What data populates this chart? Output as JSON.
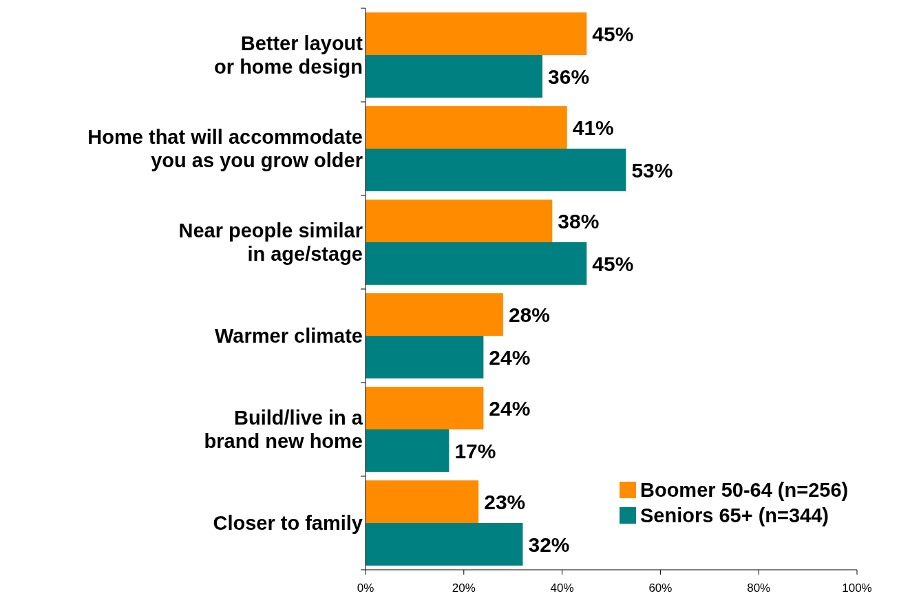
{
  "chart_data": {
    "type": "bar",
    "orientation": "horizontal",
    "categories": [
      "Better layout or home design",
      "Home that will accommodate you as you grow older",
      "Near people similar in age/stage",
      "Warmer climate",
      "Build/live in a brand new home",
      "Closer to family"
    ],
    "series": [
      {
        "name": "Boomer 50-64 (n=256)",
        "color": "#ff8c00",
        "values": [
          45,
          41,
          38,
          28,
          24,
          23
        ],
        "value_labels": [
          "45%",
          "41%",
          "38%",
          "28%",
          "24%",
          "23%"
        ]
      },
      {
        "name": "Seniors 65+ (n=344)",
        "color": "#008080",
        "values": [
          36,
          53,
          45,
          24,
          17,
          32
        ],
        "value_labels": [
          "36%",
          "53%",
          "45%",
          "24%",
          "17%",
          "32%"
        ]
      }
    ],
    "xlim": [
      0,
      100
    ],
    "xticks": [
      {
        "value": 0,
        "label": "0%"
      },
      {
        "value": 20,
        "label": "20%"
      },
      {
        "value": 40,
        "label": "40%"
      },
      {
        "value": 60,
        "label": "60%"
      },
      {
        "value": 80,
        "label": "80%"
      },
      {
        "value": 100,
        "label": "100%"
      }
    ],
    "grid": false,
    "legend": "bottom right"
  }
}
